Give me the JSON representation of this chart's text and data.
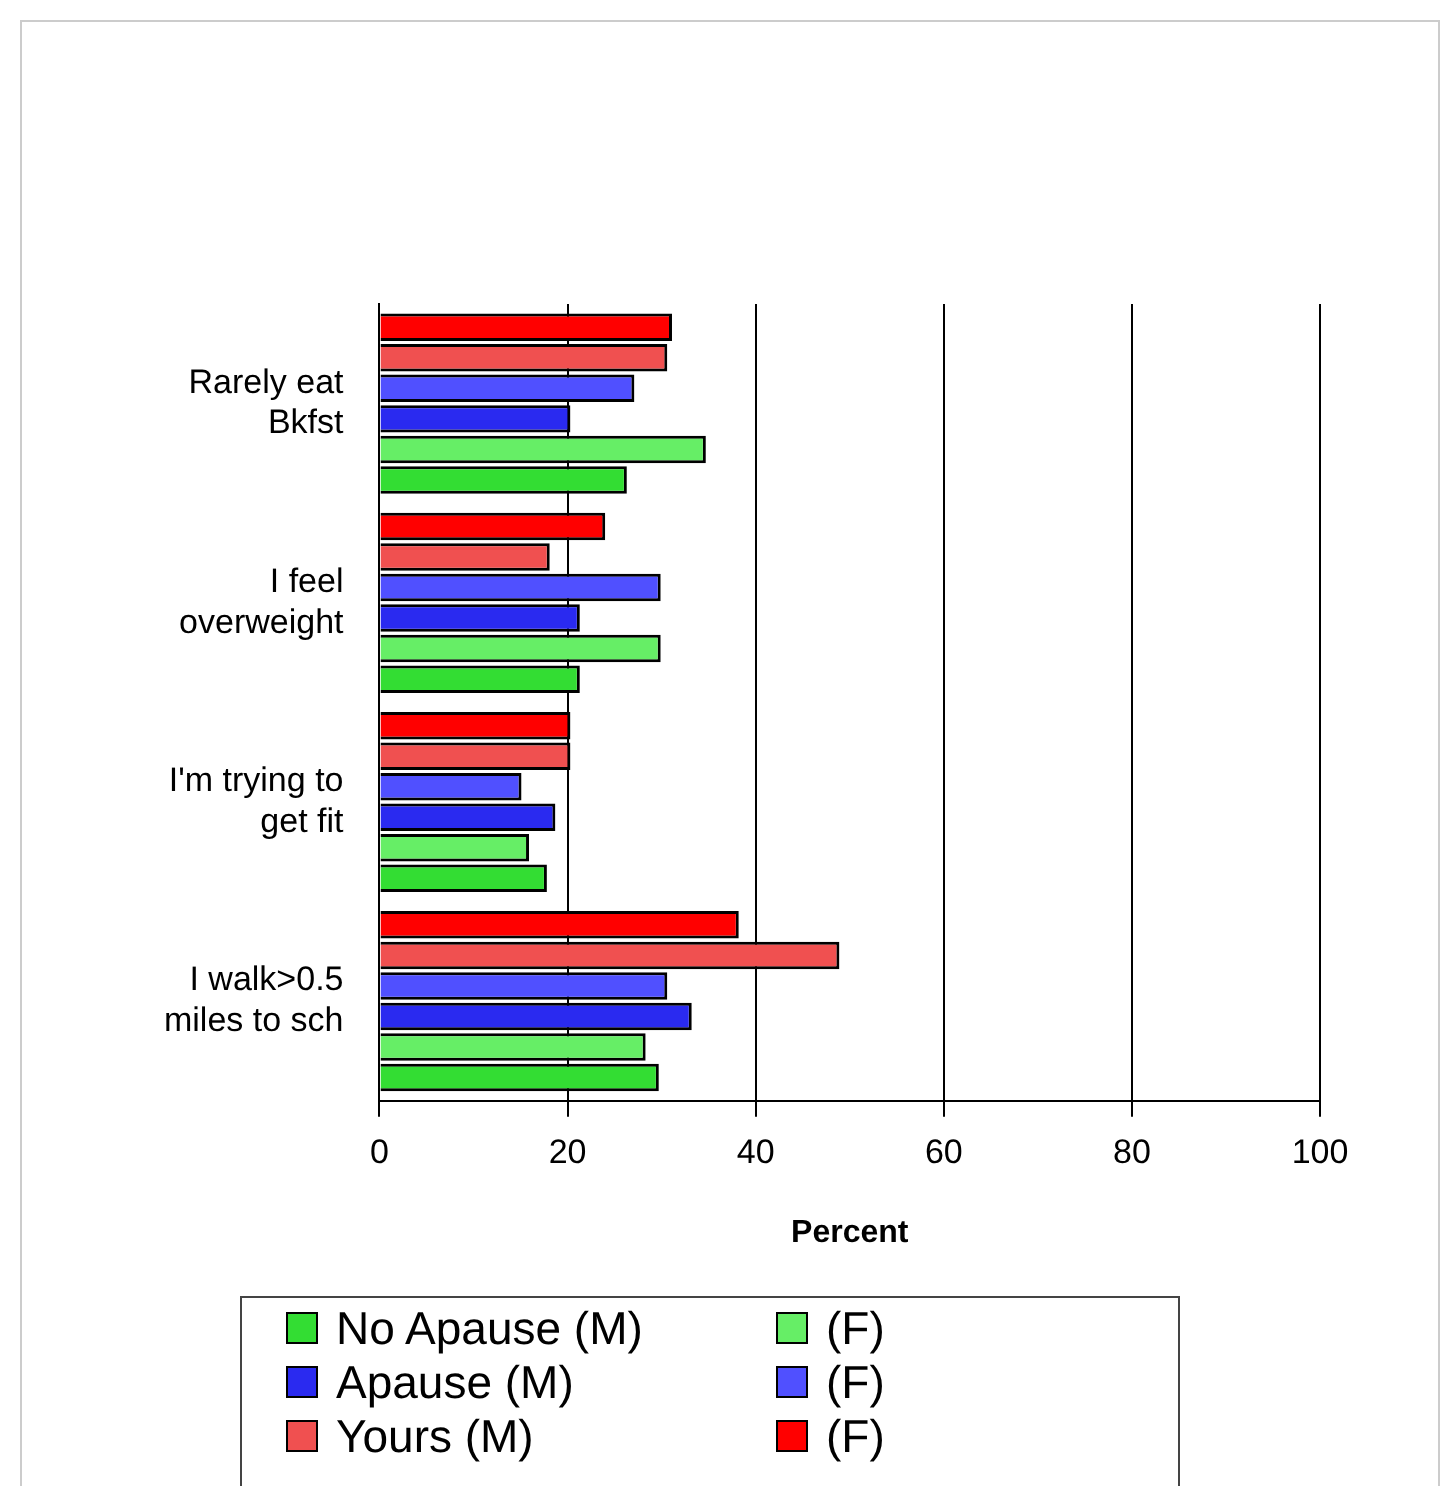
{
  "chart_data": {
    "type": "bar",
    "orientation": "horizontal",
    "xlabel": "Percent",
    "categories": [
      "Rarely eat Bkfst",
      "I feel overweight",
      "I'm trying to get fit",
      "I walk>0.5 miles to sch"
    ],
    "series": [
      {
        "name": "No Apause (M)",
        "color": "#33dd33",
        "values": [
          26.3,
          21.3,
          17.8,
          29.7
        ]
      },
      {
        "name": "(F)",
        "color": "#66ee66",
        "values": [
          34.7,
          29.9,
          15.9,
          28.3
        ]
      },
      {
        "name": "Apause (M)",
        "color": "#2a2af0",
        "values": [
          20.3,
          21.3,
          18.7,
          33.2
        ]
      },
      {
        "name": "(F)",
        "color": "#5050ff",
        "values": [
          27.1,
          29.9,
          15.1,
          30.6
        ]
      },
      {
        "name": "Yours (M)",
        "color": "#f05050",
        "values": [
          30.6,
          18.1,
          20.3,
          48.9
        ]
      },
      {
        "name": "(F)",
        "color": "#ff0000",
        "values": [
          31.1,
          24.0,
          20.3,
          38.2
        ]
      }
    ],
    "xlim": [
      0,
      100
    ],
    "xticks": [
      0,
      20,
      40,
      60,
      80,
      100
    ],
    "grid": "x",
    "legend": "bottom"
  }
}
